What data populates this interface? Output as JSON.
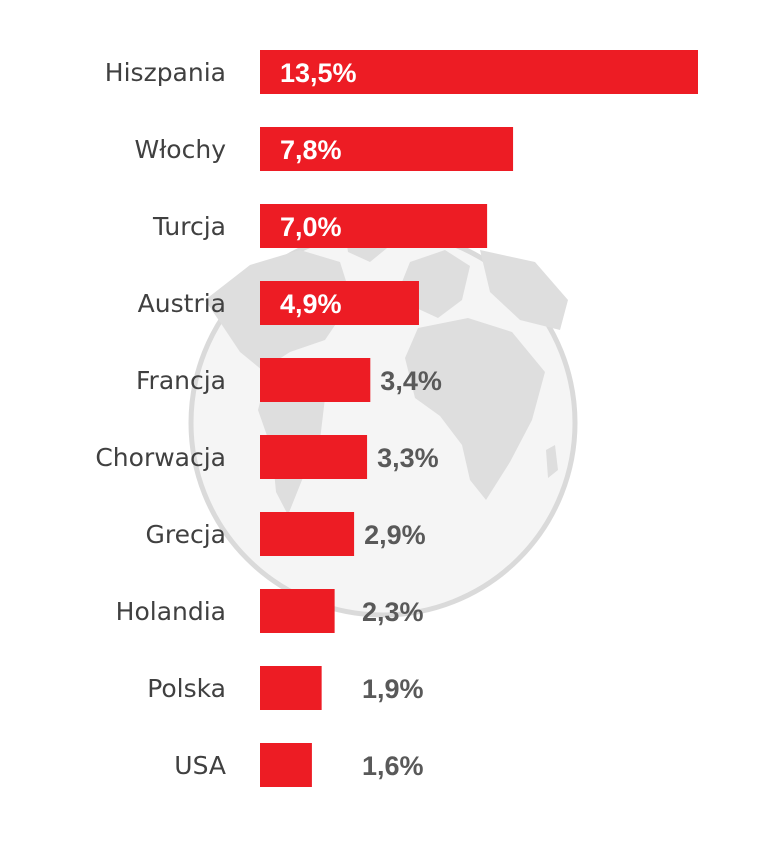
{
  "chart_data": {
    "type": "bar",
    "orientation": "horizontal",
    "categories": [
      "Hiszpania",
      "Włochy",
      "Turcja",
      "Austria",
      "Francja",
      "Chorwacja",
      "Grecja",
      "Holandia",
      "Polska",
      "USA"
    ],
    "values": [
      13.5,
      7.8,
      7.0,
      4.9,
      3.4,
      3.3,
      2.9,
      2.3,
      1.9,
      1.6
    ],
    "value_labels": [
      "13,5%",
      "7,8%",
      "7,0%",
      "4,9%",
      "3,4%",
      "3,3%",
      "2,9%",
      "2,3%",
      "1,9%",
      "1,6%"
    ],
    "unit": "%",
    "xlim": [
      0,
      13.5
    ],
    "grid": false,
    "legend": "none",
    "colors": {
      "bar": "#ed1c24",
      "label_inside": "#ffffff",
      "label_outside": "#595959",
      "category_text": "#404040",
      "globe": "#d9d9d9"
    },
    "background_icon": "globe-icon"
  }
}
